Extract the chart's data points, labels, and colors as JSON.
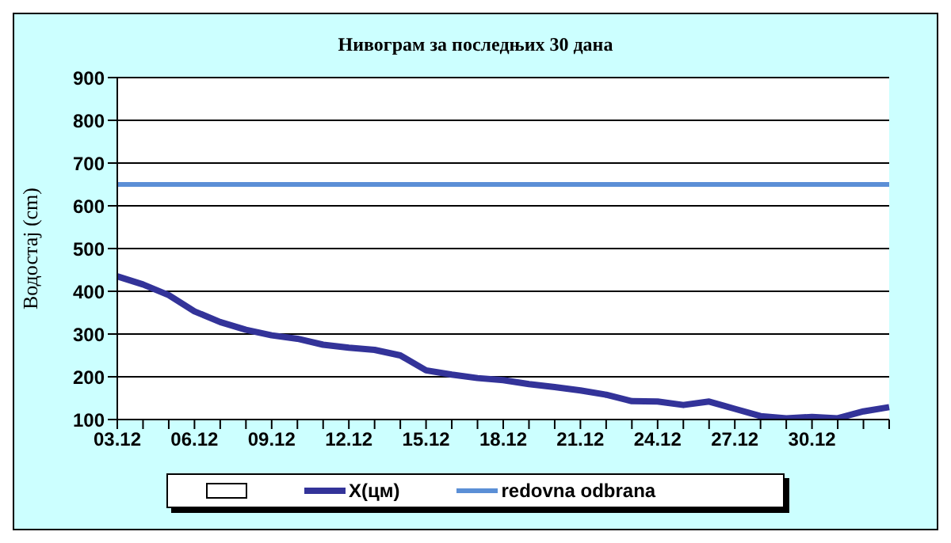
{
  "chart_data": {
    "type": "line",
    "title": "Нивограм за последњих 30 дана",
    "ylabel": "Водостај (cm)",
    "categories": [
      "03.12",
      null,
      null,
      "06.12",
      null,
      null,
      "09.12",
      null,
      null,
      "12.12",
      null,
      null,
      "15.12",
      null,
      null,
      "18.12",
      null,
      null,
      "21.12",
      null,
      null,
      "24.12",
      null,
      null,
      "27.12",
      null,
      null,
      "30.12",
      null,
      null,
      null
    ],
    "series": [
      {
        "name": "X(цм)",
        "color": "#333399",
        "values": [
          435,
          416,
          391,
          353,
          328,
          310,
          297,
          289,
          275,
          268,
          263,
          250,
          215,
          205,
          197,
          192,
          183,
          176,
          168,
          158,
          143,
          142,
          134,
          142,
          125,
          108,
          103,
          106,
          103,
          119,
          129
        ]
      }
    ],
    "ref_lines": [
      {
        "axis": "y",
        "value": 650,
        "label": "redovna odbrana",
        "color": "#5b8fd6"
      }
    ],
    "ylim": [
      100,
      900
    ],
    "yticks": [
      100,
      200,
      300,
      400,
      500,
      600,
      700,
      800,
      900
    ],
    "grid": "y",
    "legend": "bottom",
    "marker": "none",
    "line_style": "solid"
  }
}
